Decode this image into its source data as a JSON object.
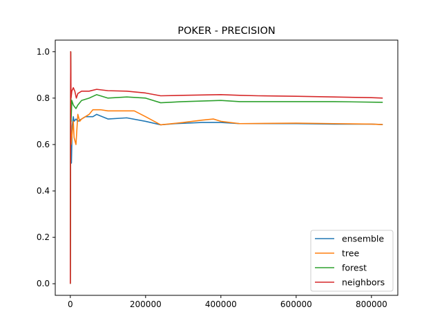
{
  "chart_data": {
    "type": "line",
    "title": "POKER - PRECISION",
    "xlabel": "",
    "ylabel": "",
    "xlim": [
      -40000,
      870000
    ],
    "ylim": [
      -0.05,
      1.05
    ],
    "x_ticks": [
      0,
      200000,
      400000,
      600000,
      800000
    ],
    "x_tick_labels": [
      "0",
      "200000",
      "400000",
      "600000",
      "800000"
    ],
    "y_ticks": [
      0.0,
      0.2,
      0.4,
      0.6,
      0.8,
      1.0
    ],
    "y_tick_labels": [
      "0.0",
      "0.2",
      "0.4",
      "0.6",
      "0.8",
      "1.0"
    ],
    "grid": false,
    "legend_position": "lower-right",
    "series": [
      {
        "name": "ensemble",
        "color": "#1f77b4",
        "points": [
          [
            0,
            0.0
          ],
          [
            1000,
            1.0
          ],
          [
            2000,
            0.55
          ],
          [
            3000,
            0.52
          ],
          [
            5000,
            0.68
          ],
          [
            8000,
            0.72
          ],
          [
            10000,
            0.7
          ],
          [
            15000,
            0.71
          ],
          [
            20000,
            0.7
          ],
          [
            30000,
            0.71
          ],
          [
            40000,
            0.72
          ],
          [
            60000,
            0.72
          ],
          [
            70000,
            0.73
          ],
          [
            100000,
            0.71
          ],
          [
            150000,
            0.715
          ],
          [
            200000,
            0.7
          ],
          [
            240000,
            0.685
          ],
          [
            280000,
            0.69
          ],
          [
            350000,
            0.695
          ],
          [
            400000,
            0.695
          ],
          [
            450000,
            0.69
          ],
          [
            500000,
            0.69
          ],
          [
            600000,
            0.69
          ],
          [
            700000,
            0.688
          ],
          [
            800000,
            0.688
          ],
          [
            830000,
            0.686
          ]
        ]
      },
      {
        "name": "tree",
        "color": "#ff7f0e",
        "points": [
          [
            0,
            0.0
          ],
          [
            1000,
            1.0
          ],
          [
            2000,
            0.6
          ],
          [
            5000,
            0.65
          ],
          [
            8000,
            0.7
          ],
          [
            10000,
            0.63
          ],
          [
            15000,
            0.6
          ],
          [
            20000,
            0.73
          ],
          [
            25000,
            0.7
          ],
          [
            30000,
            0.71
          ],
          [
            50000,
            0.73
          ],
          [
            60000,
            0.75
          ],
          [
            80000,
            0.75
          ],
          [
            100000,
            0.745
          ],
          [
            170000,
            0.745
          ],
          [
            200000,
            0.72
          ],
          [
            240000,
            0.685
          ],
          [
            300000,
            0.695
          ],
          [
            350000,
            0.705
          ],
          [
            380000,
            0.71
          ],
          [
            400000,
            0.7
          ],
          [
            450000,
            0.69
          ],
          [
            600000,
            0.692
          ],
          [
            700000,
            0.69
          ],
          [
            800000,
            0.688
          ],
          [
            830000,
            0.686
          ]
        ]
      },
      {
        "name": "forest",
        "color": "#2ca02c",
        "points": [
          [
            0,
            0.0
          ],
          [
            1000,
            1.0
          ],
          [
            2000,
            0.7
          ],
          [
            4000,
            0.79
          ],
          [
            8000,
            0.77
          ],
          [
            15000,
            0.755
          ],
          [
            20000,
            0.77
          ],
          [
            30000,
            0.79
          ],
          [
            50000,
            0.8
          ],
          [
            70000,
            0.815
          ],
          [
            80000,
            0.81
          ],
          [
            100000,
            0.8
          ],
          [
            150000,
            0.805
          ],
          [
            200000,
            0.8
          ],
          [
            240000,
            0.78
          ],
          [
            300000,
            0.785
          ],
          [
            400000,
            0.79
          ],
          [
            450000,
            0.785
          ],
          [
            600000,
            0.785
          ],
          [
            700000,
            0.785
          ],
          [
            830000,
            0.782
          ]
        ]
      },
      {
        "name": "neighbors",
        "color": "#d62728",
        "points": [
          [
            0,
            0.0
          ],
          [
            1000,
            1.0
          ],
          [
            2000,
            0.8
          ],
          [
            4000,
            0.83
          ],
          [
            8000,
            0.845
          ],
          [
            12000,
            0.83
          ],
          [
            16000,
            0.8
          ],
          [
            20000,
            0.82
          ],
          [
            30000,
            0.83
          ],
          [
            50000,
            0.83
          ],
          [
            70000,
            0.838
          ],
          [
            100000,
            0.832
          ],
          [
            150000,
            0.83
          ],
          [
            200000,
            0.822
          ],
          [
            240000,
            0.81
          ],
          [
            300000,
            0.812
          ],
          [
            400000,
            0.815
          ],
          [
            450000,
            0.812
          ],
          [
            500000,
            0.81
          ],
          [
            600000,
            0.808
          ],
          [
            700000,
            0.805
          ],
          [
            800000,
            0.802
          ],
          [
            830000,
            0.8
          ]
        ]
      }
    ]
  }
}
